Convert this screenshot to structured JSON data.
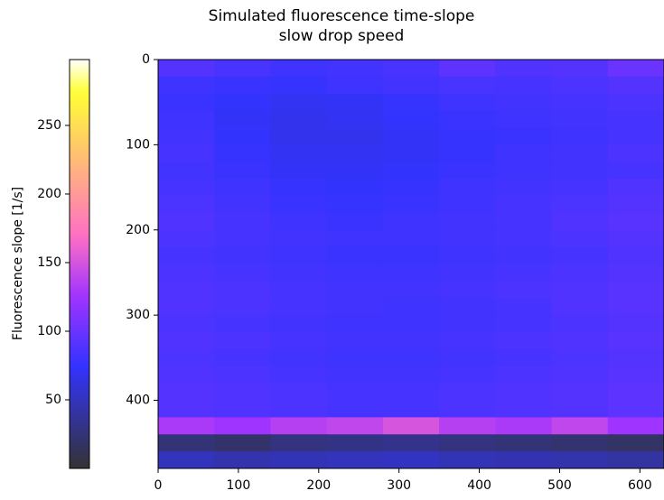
{
  "chart_data": {
    "type": "heatmap",
    "title": "Simulated fluorescence time-slope",
    "subtitle": "slow drop speed",
    "colorbar_label": "Fluorescence slope [1/s]",
    "colormap": "gnuplot2",
    "alpha": 0.8,
    "clim": [
      0,
      298
    ],
    "cticks": [
      50,
      100,
      150,
      200,
      250
    ],
    "xlim": [
      0,
      630
    ],
    "xticks": [
      0,
      100,
      200,
      300,
      400,
      500,
      600
    ],
    "ylim": [
      480,
      0
    ],
    "yticks": [
      0,
      100,
      200,
      300,
      400
    ],
    "xedges": [
      0,
      70,
      140,
      210,
      280,
      350,
      420,
      490,
      560,
      630
    ],
    "yedges": [
      0,
      20,
      40,
      60,
      80,
      100,
      120,
      140,
      160,
      180,
      200,
      220,
      240,
      260,
      280,
      300,
      320,
      340,
      360,
      380,
      400,
      420,
      440,
      460,
      480
    ],
    "values": [
      [
        90,
        85,
        80,
        82,
        85,
        95,
        88,
        90,
        100
      ],
      [
        80,
        78,
        76,
        80,
        82,
        85,
        84,
        86,
        90
      ],
      [
        78,
        74,
        70,
        72,
        76,
        80,
        82,
        84,
        86
      ],
      [
        80,
        72,
        68,
        70,
        74,
        78,
        80,
        82,
        84
      ],
      [
        82,
        74,
        68,
        68,
        72,
        76,
        78,
        80,
        84
      ],
      [
        84,
        76,
        70,
        70,
        72,
        76,
        80,
        82,
        86
      ],
      [
        82,
        78,
        72,
        72,
        74,
        78,
        80,
        82,
        84
      ],
      [
        84,
        80,
        76,
        74,
        76,
        80,
        82,
        84,
        88
      ],
      [
        86,
        82,
        78,
        76,
        78,
        80,
        84,
        86,
        90
      ],
      [
        88,
        84,
        80,
        78,
        80,
        82,
        84,
        88,
        92
      ],
      [
        86,
        84,
        82,
        80,
        80,
        82,
        84,
        86,
        90
      ],
      [
        84,
        82,
        80,
        78,
        78,
        80,
        82,
        84,
        88
      ],
      [
        86,
        84,
        82,
        80,
        80,
        82,
        84,
        86,
        90
      ],
      [
        88,
        86,
        84,
        82,
        82,
        84,
        86,
        88,
        92
      ],
      [
        88,
        86,
        84,
        82,
        80,
        82,
        84,
        88,
        92
      ],
      [
        86,
        84,
        82,
        80,
        80,
        82,
        84,
        86,
        90
      ],
      [
        88,
        86,
        84,
        82,
        82,
        84,
        86,
        88,
        92
      ],
      [
        86,
        84,
        82,
        80,
        80,
        82,
        84,
        86,
        90
      ],
      [
        88,
        86,
        84,
        82,
        82,
        84,
        86,
        88,
        92
      ],
      [
        90,
        88,
        86,
        84,
        84,
        86,
        88,
        90,
        94
      ],
      [
        90,
        88,
        86,
        84,
        84,
        86,
        88,
        90,
        94
      ],
      [
        130,
        125,
        135,
        140,
        150,
        135,
        130,
        140,
        125
      ],
      [
        25,
        20,
        28,
        30,
        32,
        28,
        25,
        22,
        18
      ],
      [
        50,
        45,
        48,
        50,
        52,
        48,
        46,
        44,
        40
      ]
    ]
  }
}
